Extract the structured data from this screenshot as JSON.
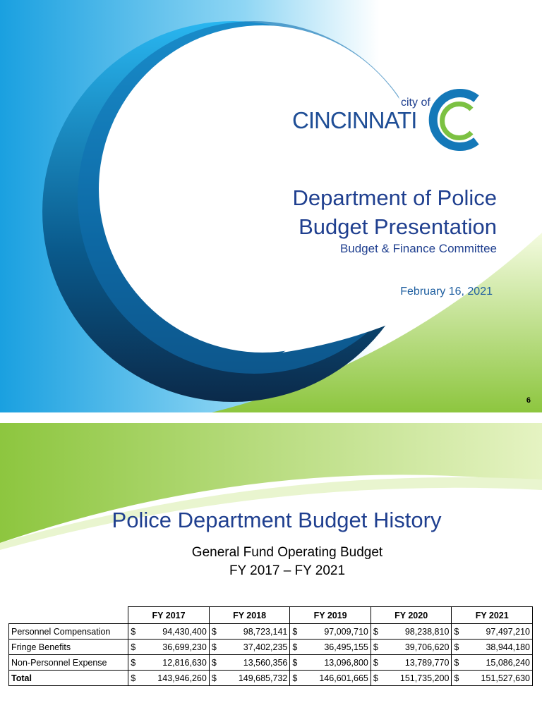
{
  "slide1": {
    "logo_small": "city of",
    "logo_main": "CINCINNATI",
    "title_lines": [
      "Department of Police",
      "Budget Presentation"
    ],
    "subtitle": "Budget & Finance Committee",
    "date": "February 16, 2021",
    "page_number": "6"
  },
  "slide2": {
    "title": "Police Department Budget History",
    "subtitle_lines": [
      "General Fund Operating Budget",
      "FY 2017 – FY 2021"
    ],
    "table": {
      "currency": "$",
      "columns": [
        "FY 2017",
        "FY 2018",
        "FY 2019",
        "FY 2020",
        "FY 2021"
      ],
      "rows": [
        {
          "label": "Personnel Compensation",
          "values": [
            "94,430,400",
            "98,723,141",
            "97,009,710",
            "98,238,810",
            "97,497,210"
          ]
        },
        {
          "label": "Fringe Benefits",
          "values": [
            "36,699,230",
            "37,402,235",
            "36,495,155",
            "39,706,620",
            "38,944,180"
          ]
        },
        {
          "label": "Non-Personnel Expense",
          "values": [
            "12,816,630",
            "13,560,356",
            "13,096,800",
            "13,789,770",
            "15,086,240"
          ]
        },
        {
          "label": "Total",
          "values": [
            "143,946,260",
            "149,685,732",
            "146,601,665",
            "151,735,200",
            "151,527,630"
          ]
        }
      ]
    }
  }
}
